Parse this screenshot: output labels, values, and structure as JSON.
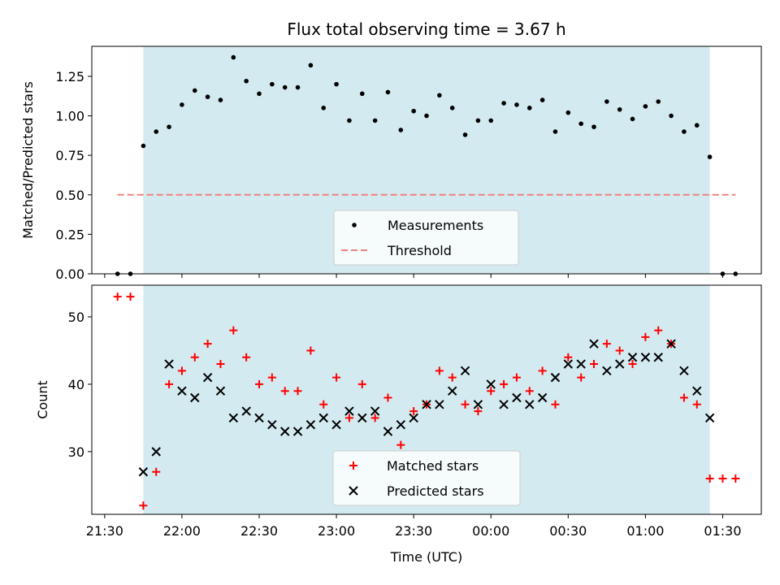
{
  "chart_data": [
    {
      "type": "scatter",
      "title": "Flux total observing time = 3.67 h",
      "ylabel": "Matched/Predicted stars",
      "ylim": [
        0,
        1.44
      ],
      "yticks": [
        0.0,
        0.25,
        0.5,
        0.75,
        1.0,
        1.25
      ],
      "yticklabels": [
        "0.00",
        "0.25",
        "0.50",
        "0.75",
        "1.00",
        "1.25"
      ],
      "shaded_interval": {
        "from": "21:45",
        "to": "01:25",
        "color": "#d3eaf0"
      },
      "grid": false,
      "legend_position": "lower center",
      "series": [
        {
          "name": "Measurements",
          "marker": "dot",
          "color": "#000000",
          "points": [
            [
              "21:35",
              0.0
            ],
            [
              "21:40",
              0.0
            ],
            [
              "21:45",
              0.81
            ],
            [
              "21:50",
              0.9
            ],
            [
              "21:55",
              0.93
            ],
            [
              "22:00",
              1.07
            ],
            [
              "22:05",
              1.16
            ],
            [
              "22:10",
              1.12
            ],
            [
              "22:15",
              1.1
            ],
            [
              "22:20",
              1.37
            ],
            [
              "22:25",
              1.22
            ],
            [
              "22:30",
              1.14
            ],
            [
              "22:35",
              1.2
            ],
            [
              "22:40",
              1.18
            ],
            [
              "22:45",
              1.18
            ],
            [
              "22:50",
              1.32
            ],
            [
              "22:55",
              1.05
            ],
            [
              "23:00",
              1.2
            ],
            [
              "23:05",
              0.97
            ],
            [
              "23:10",
              1.14
            ],
            [
              "23:15",
              0.97
            ],
            [
              "23:20",
              1.15
            ],
            [
              "23:25",
              0.91
            ],
            [
              "23:30",
              1.03
            ],
            [
              "23:35",
              1.0
            ],
            [
              "23:40",
              1.13
            ],
            [
              "23:45",
              1.05
            ],
            [
              "23:50",
              0.88
            ],
            [
              "23:55",
              0.97
            ],
            [
              "00:00",
              0.97
            ],
            [
              "00:05",
              1.08
            ],
            [
              "00:10",
              1.07
            ],
            [
              "00:15",
              1.05
            ],
            [
              "00:20",
              1.1
            ],
            [
              "00:25",
              0.9
            ],
            [
              "00:30",
              1.02
            ],
            [
              "00:35",
              0.95
            ],
            [
              "00:40",
              0.93
            ],
            [
              "00:45",
              1.09
            ],
            [
              "00:50",
              1.04
            ],
            [
              "00:55",
              0.98
            ],
            [
              "01:00",
              1.06
            ],
            [
              "01:05",
              1.09
            ],
            [
              "01:10",
              1.0
            ],
            [
              "01:15",
              0.9
            ],
            [
              "01:20",
              0.94
            ],
            [
              "01:25",
              0.74
            ],
            [
              "01:30",
              0.0
            ],
            [
              "01:35",
              0.0
            ]
          ]
        },
        {
          "name": "Threshold",
          "marker": "dashed-line",
          "color": "#f08080",
          "points": [
            [
              "21:35",
              0.5
            ],
            [
              "01:35",
              0.5
            ]
          ]
        }
      ]
    },
    {
      "type": "scatter",
      "xlabel": "Time (UTC)",
      "ylabel": "Count",
      "ylim": [
        20.7,
        54.7
      ],
      "yticks": [
        30,
        40,
        50
      ],
      "yticklabels": [
        "30",
        "40",
        "50"
      ],
      "xlim": [
        "21:25",
        "01:45"
      ],
      "xticks": [
        "21:30",
        "22:00",
        "22:30",
        "23:00",
        "23:30",
        "00:00",
        "00:30",
        "01:00",
        "01:30"
      ],
      "shaded_interval": {
        "from": "21:45",
        "to": "01:25",
        "color": "#d3eaf0"
      },
      "grid": false,
      "legend_position": "lower center",
      "series": [
        {
          "name": "Matched stars",
          "marker": "+",
          "color": "#ff0000",
          "points": [
            [
              "21:35",
              53
            ],
            [
              "21:40",
              53
            ],
            [
              "21:45",
              22
            ],
            [
              "21:50",
              27
            ],
            [
              "21:55",
              40
            ],
            [
              "22:00",
              42
            ],
            [
              "22:05",
              44
            ],
            [
              "22:10",
              46
            ],
            [
              "22:15",
              43
            ],
            [
              "22:20",
              48
            ],
            [
              "22:25",
              44
            ],
            [
              "22:30",
              40
            ],
            [
              "22:35",
              41
            ],
            [
              "22:40",
              39
            ],
            [
              "22:45",
              39
            ],
            [
              "22:50",
              45
            ],
            [
              "22:55",
              37
            ],
            [
              "23:00",
              41
            ],
            [
              "23:05",
              35
            ],
            [
              "23:10",
              40
            ],
            [
              "23:15",
              35
            ],
            [
              "23:20",
              38
            ],
            [
              "23:25",
              31
            ],
            [
              "23:30",
              36
            ],
            [
              "23:35",
              37
            ],
            [
              "23:40",
              42
            ],
            [
              "23:45",
              41
            ],
            [
              "23:50",
              37
            ],
            [
              "23:55",
              36
            ],
            [
              "00:00",
              39
            ],
            [
              "00:05",
              40
            ],
            [
              "00:10",
              41
            ],
            [
              "00:15",
              39
            ],
            [
              "00:20",
              42
            ],
            [
              "00:25",
              37
            ],
            [
              "00:30",
              44
            ],
            [
              "00:35",
              41
            ],
            [
              "00:40",
              43
            ],
            [
              "00:45",
              46
            ],
            [
              "00:50",
              45
            ],
            [
              "00:55",
              43
            ],
            [
              "01:00",
              47
            ],
            [
              "01:05",
              48
            ],
            [
              "01:10",
              46
            ],
            [
              "01:15",
              38
            ],
            [
              "01:20",
              37
            ],
            [
              "01:25",
              26
            ],
            [
              "01:30",
              26
            ],
            [
              "01:35",
              26
            ]
          ]
        },
        {
          "name": "Predicted stars",
          "marker": "x",
          "color": "#000000",
          "points": [
            [
              "21:45",
              27
            ],
            [
              "21:50",
              30
            ],
            [
              "21:55",
              43
            ],
            [
              "22:00",
              39
            ],
            [
              "22:05",
              38
            ],
            [
              "22:10",
              41
            ],
            [
              "22:15",
              39
            ],
            [
              "22:20",
              35
            ],
            [
              "22:25",
              36
            ],
            [
              "22:30",
              35
            ],
            [
              "22:35",
              34
            ],
            [
              "22:40",
              33
            ],
            [
              "22:45",
              33
            ],
            [
              "22:50",
              34
            ],
            [
              "22:55",
              35
            ],
            [
              "23:00",
              34
            ],
            [
              "23:05",
              36
            ],
            [
              "23:10",
              35
            ],
            [
              "23:15",
              36
            ],
            [
              "23:20",
              33
            ],
            [
              "23:25",
              34
            ],
            [
              "23:30",
              35
            ],
            [
              "23:35",
              37
            ],
            [
              "23:40",
              37
            ],
            [
              "23:45",
              39
            ],
            [
              "23:50",
              42
            ],
            [
              "23:55",
              37
            ],
            [
              "00:00",
              40
            ],
            [
              "00:05",
              37
            ],
            [
              "00:10",
              38
            ],
            [
              "00:15",
              37
            ],
            [
              "00:20",
              38
            ],
            [
              "00:25",
              41
            ],
            [
              "00:30",
              43
            ],
            [
              "00:35",
              43
            ],
            [
              "00:40",
              46
            ],
            [
              "00:45",
              42
            ],
            [
              "00:50",
              43
            ],
            [
              "00:55",
              44
            ],
            [
              "01:00",
              44
            ],
            [
              "01:05",
              44
            ],
            [
              "01:10",
              46
            ],
            [
              "01:15",
              42
            ],
            [
              "01:20",
              39
            ],
            [
              "01:25",
              35
            ]
          ]
        }
      ]
    }
  ]
}
